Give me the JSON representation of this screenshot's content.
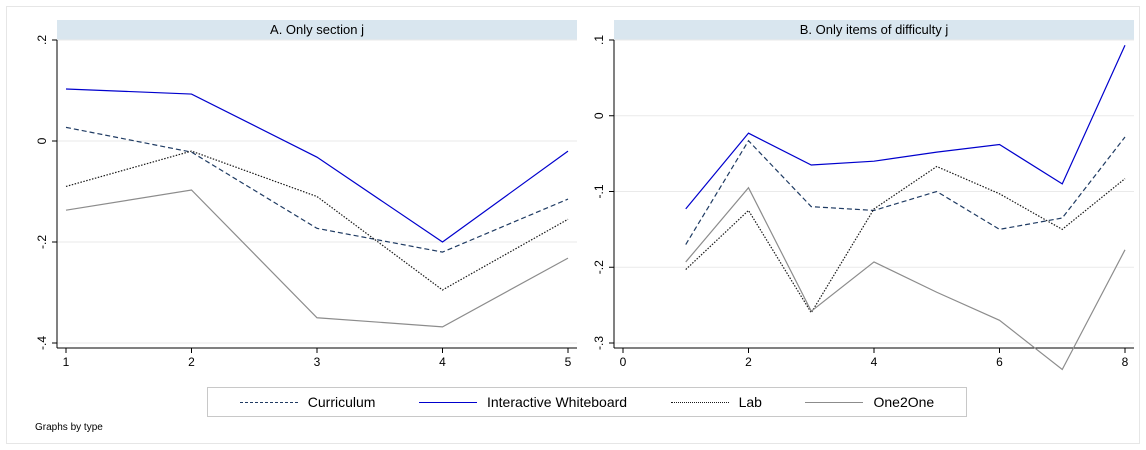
{
  "colors": {
    "background": "#ffffff",
    "header_fill": "#d9e6ef",
    "grid": "#eaeaea",
    "axis": "#000000"
  },
  "legend": [
    {
      "label": "Curriculum",
      "color": "#1f3b63",
      "dash": "dashed"
    },
    {
      "label": "Interactive Whiteboard",
      "color": "#0000cd",
      "dash": "solid"
    },
    {
      "label": "Lab",
      "color": "#1a1a1a",
      "dash": "dotted"
    },
    {
      "label": "One2One",
      "color": "#8c8c8c",
      "dash": "solid"
    }
  ],
  "note": "Graphs by type",
  "chart_data": [
    {
      "type": "line",
      "title": "A. Only section j",
      "xlabel": "",
      "ylabel": "",
      "xlim": [
        1,
        5
      ],
      "ylim": [
        -0.4,
        0.2
      ],
      "xticks": [
        1,
        2,
        3,
        4,
        5
      ],
      "xtick_labels": [
        "1",
        "2",
        "3",
        "4",
        "5"
      ],
      "yticks": [
        -0.4,
        -0.2,
        0,
        0.2
      ],
      "ytick_labels": [
        "-.4",
        "-.2",
        "0",
        ".2"
      ],
      "grid": true,
      "x": [
        1,
        2,
        3,
        4,
        5
      ],
      "series": [
        {
          "name": "Curriculum",
          "values": [
            0.027,
            -0.022,
            -0.173,
            -0.22,
            -0.115
          ]
        },
        {
          "name": "Interactive Whiteboard",
          "values": [
            0.103,
            0.093,
            -0.032,
            -0.2,
            -0.02
          ]
        },
        {
          "name": "Lab",
          "values": [
            -0.09,
            -0.02,
            -0.11,
            -0.295,
            -0.155
          ]
        },
        {
          "name": "One2One",
          "values": [
            -0.137,
            -0.097,
            -0.35,
            -0.368,
            -0.232
          ]
        }
      ]
    },
    {
      "type": "line",
      "title": "B. Only items of difficulty j",
      "xlabel": "",
      "ylabel": "",
      "xlim": [
        0,
        8
      ],
      "ylim": [
        -0.3,
        0.1
      ],
      "xticks": [
        0,
        2,
        4,
        6,
        8
      ],
      "xtick_labels": [
        "0",
        "2",
        "4",
        "6",
        "8"
      ],
      "yticks": [
        -0.3,
        -0.2,
        -0.1,
        0,
        0.1
      ],
      "ytick_labels": [
        "-.3",
        "-.2",
        "-.1",
        "0",
        ".1"
      ],
      "grid": true,
      "x": [
        1,
        2,
        3,
        4,
        5,
        6,
        7,
        8
      ],
      "series": [
        {
          "name": "Curriculum",
          "values": [
            -0.17,
            -0.033,
            -0.12,
            -0.125,
            -0.1,
            -0.15,
            -0.135,
            -0.028
          ]
        },
        {
          "name": "Interactive Whiteboard",
          "values": [
            -0.123,
            -0.023,
            -0.065,
            -0.06,
            -0.048,
            -0.038,
            -0.09,
            0.093
          ]
        },
        {
          "name": "Lab",
          "values": [
            -0.203,
            -0.125,
            -0.26,
            -0.123,
            -0.067,
            -0.103,
            -0.15,
            -0.083
          ]
        },
        {
          "name": "One2One",
          "values": [
            -0.193,
            -0.095,
            -0.258,
            -0.193,
            -0.233,
            -0.27,
            -0.335,
            -0.177
          ]
        }
      ]
    }
  ]
}
